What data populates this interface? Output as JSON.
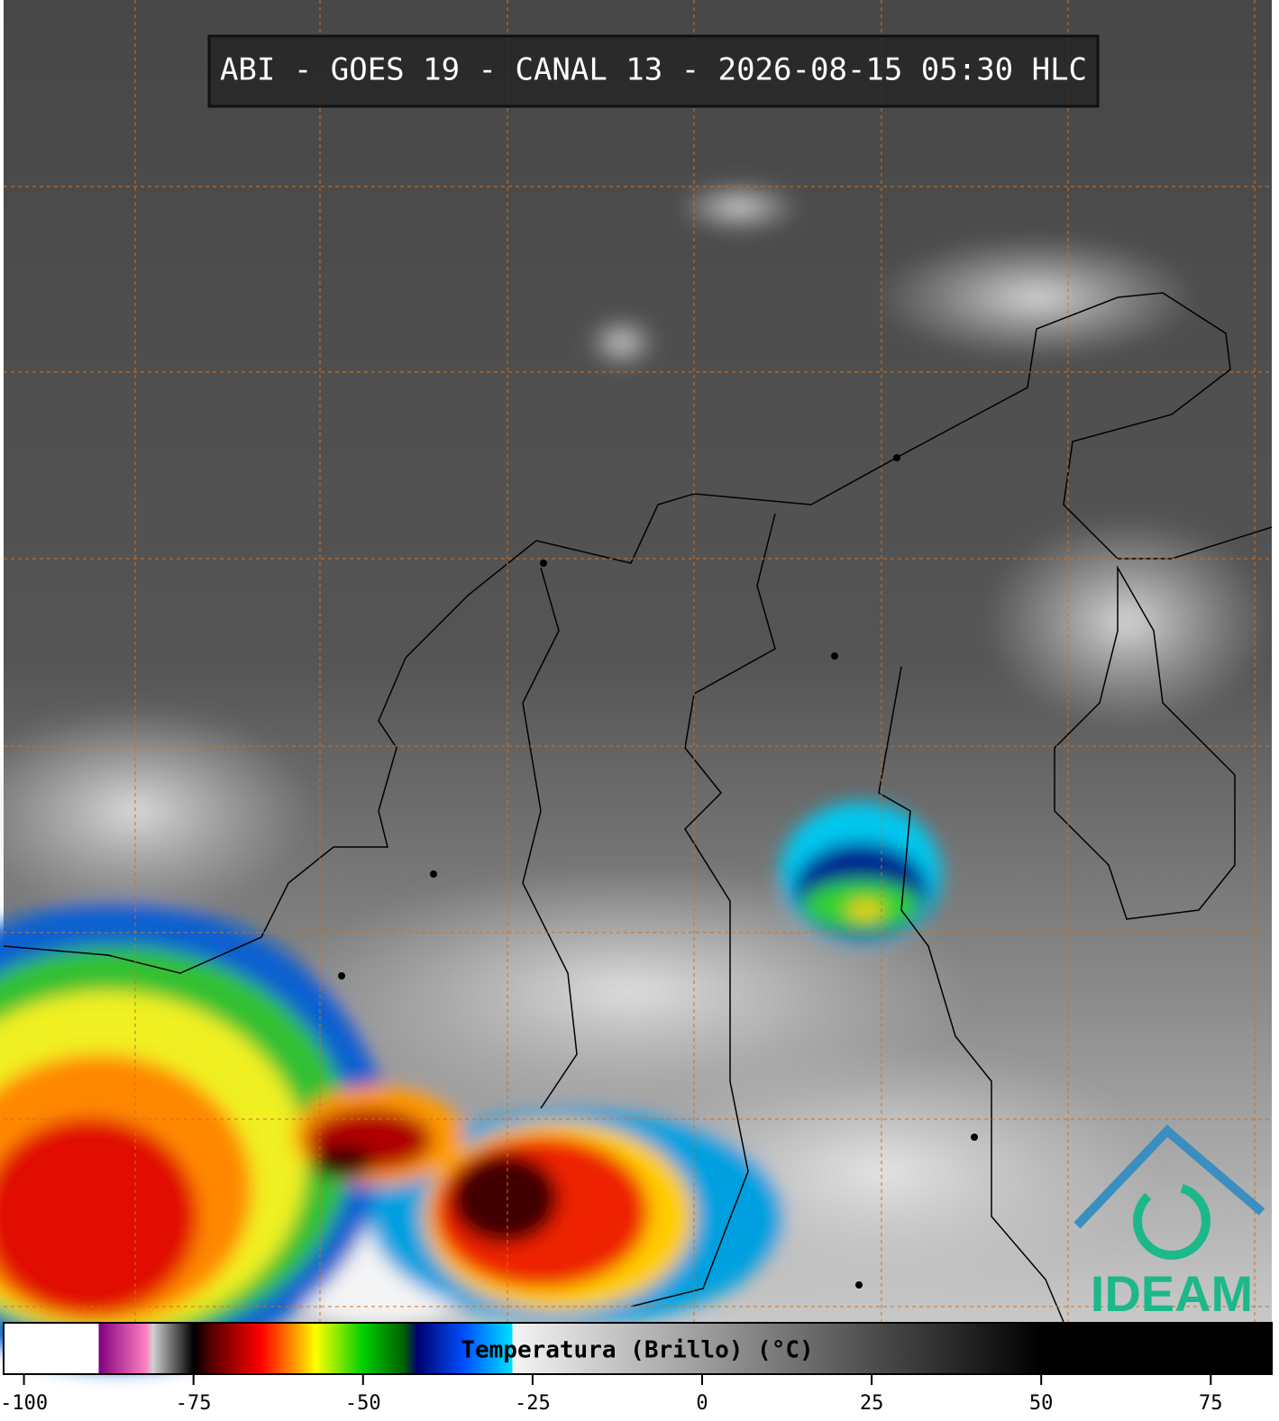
{
  "title": "ABI - GOES 19 - CANAL 13 - 2026-08-15 05:30 HLC",
  "logo": "IDEAM",
  "colorbar": {
    "label": "Temperatura (Brillo) (°C)",
    "lim": [
      -103,
      84
    ],
    "ticks": [
      -100,
      -75,
      -50,
      -25,
      0,
      25,
      50,
      75
    ],
    "stops": [
      {
        "value": -103,
        "color": "#ffffff"
      },
      {
        "value": -89,
        "color": "#ffffff"
      },
      {
        "value": -89,
        "color": "#800080"
      },
      {
        "value": -82,
        "color": "#ff80c0"
      },
      {
        "value": -81,
        "color": "#d0d0d0"
      },
      {
        "value": -75,
        "color": "#000000"
      },
      {
        "value": -72,
        "color": "#600000"
      },
      {
        "value": -65,
        "color": "#ff0000"
      },
      {
        "value": -60,
        "color": "#ff9900"
      },
      {
        "value": -57,
        "color": "#ffff00"
      },
      {
        "value": -50,
        "color": "#00d000"
      },
      {
        "value": -44,
        "color": "#006000"
      },
      {
        "value": -42,
        "color": "#000070"
      },
      {
        "value": -35,
        "color": "#0050ff"
      },
      {
        "value": -28,
        "color": "#00e0ff"
      },
      {
        "value": -28,
        "color": "#f4f4f4"
      },
      {
        "value": 50,
        "color": "#000000"
      },
      {
        "value": 84,
        "color": "#000000"
      }
    ]
  }
}
